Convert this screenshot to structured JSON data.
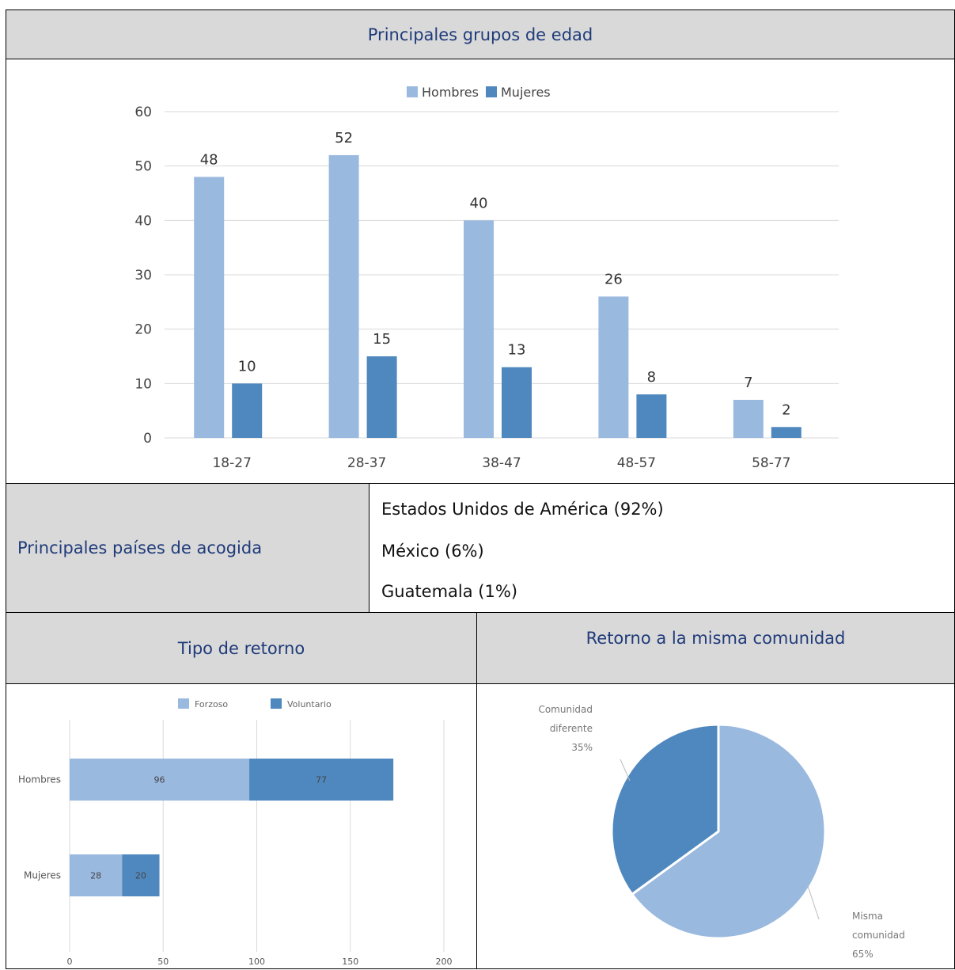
{
  "header_age": "Principales grupos de edad",
  "countries_label": "Principales países de acogida",
  "countries": [
    "Estados Unidos de América (92%)",
    "México (6%)",
    "Guatemala (1%)"
  ],
  "header_return_type": "Tipo de retorno",
  "header_same_community": "Retorno a la misma comunidad",
  "colors": {
    "light": "#9ab9df",
    "dark": "#4f88be",
    "header_bg": "#d9d9d9",
    "header_text": "#1f3b7a"
  },
  "chart_data": [
    {
      "type": "bar",
      "categories": [
        "18-27",
        "28-37",
        "38-47",
        "48-57",
        "58-77"
      ],
      "series": [
        {
          "name": "Hombres",
          "values": [
            48,
            52,
            40,
            26,
            7
          ]
        },
        {
          "name": "Mujeres",
          "values": [
            10,
            15,
            13,
            8,
            2
          ]
        }
      ],
      "ylim": [
        0,
        60
      ],
      "yticks": [
        0,
        10,
        20,
        30,
        40,
        50,
        60
      ],
      "legend": "top-center",
      "grid": true
    },
    {
      "type": "bar",
      "orientation": "horizontal",
      "stacked": true,
      "categories": [
        "Hombres",
        "Mujeres"
      ],
      "series": [
        {
          "name": "Forzoso",
          "values": [
            96,
            28
          ]
        },
        {
          "name": "Voluntario",
          "values": [
            77,
            20
          ]
        }
      ],
      "xlim": [
        0,
        200
      ],
      "xticks": [
        0,
        50,
        100,
        150,
        200
      ],
      "legend": "top-center",
      "grid": true
    },
    {
      "type": "pie",
      "slices": [
        {
          "name": "Misma comunidad",
          "value": 65,
          "label_lines": [
            "Misma",
            "comunidad",
            "65%"
          ]
        },
        {
          "name": "Comunidad diferente",
          "value": 35,
          "label_lines": [
            "Comunidad",
            "diferente",
            "35%"
          ]
        }
      ]
    }
  ]
}
